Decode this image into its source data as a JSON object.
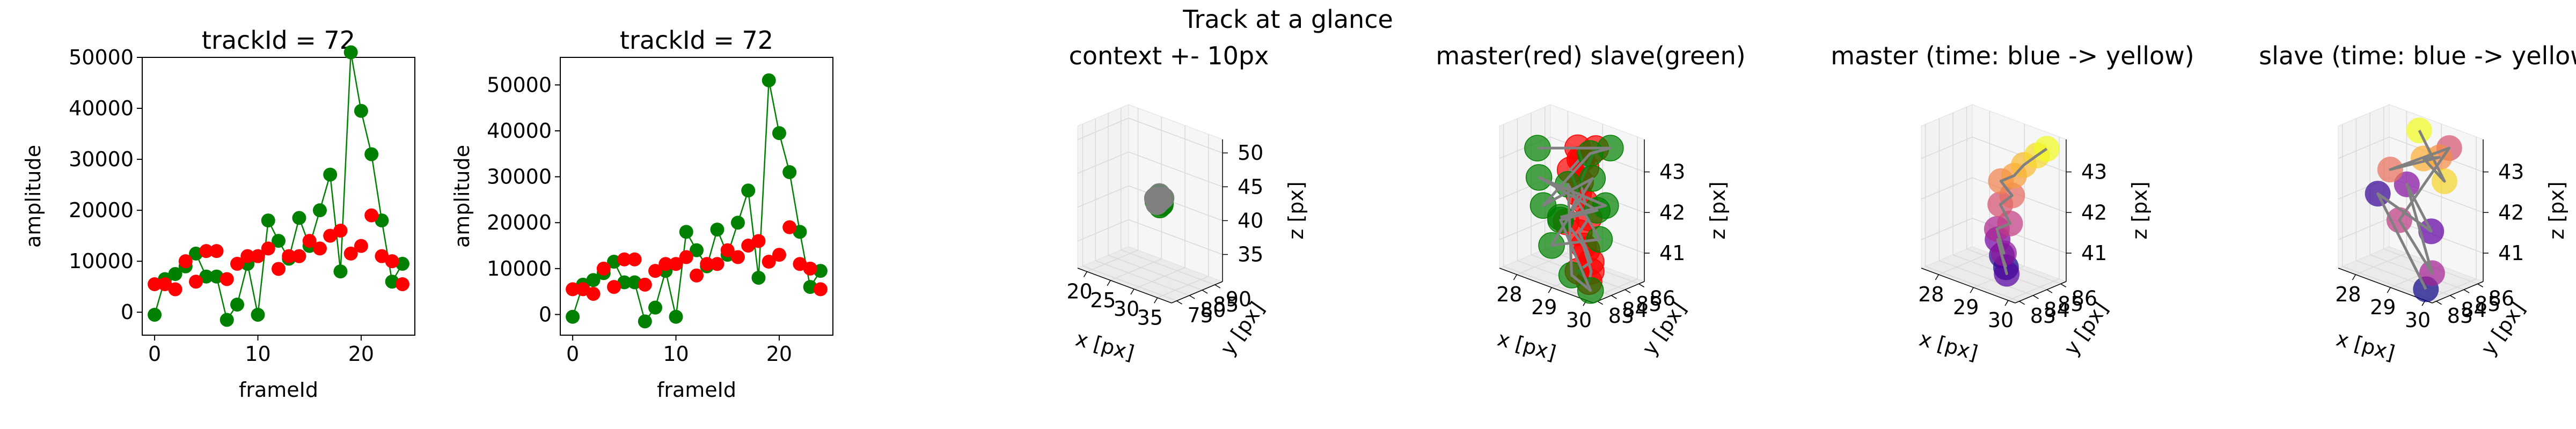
{
  "figure": {
    "suptitle": "Track at a glance"
  },
  "colors": {
    "master": "#ff0000",
    "slave": "#008000",
    "path": "#808080",
    "pane": "#f2f2f2",
    "grid": "#e6e6e6"
  },
  "chart_data": [
    {
      "type": "line",
      "title": "trackId = 72",
      "xlabel": "frameId",
      "ylabel": "amplitude",
      "xlim": [
        -1.2,
        25.2
      ],
      "ylim": [
        -4500,
        50000
      ],
      "xticks": [
        0,
        10,
        20
      ],
      "yticks": [
        0,
        10000,
        20000,
        30000,
        40000,
        50000
      ],
      "x": [
        0,
        1,
        2,
        3,
        4,
        5,
        6,
        7,
        8,
        9,
        10,
        11,
        12,
        13,
        14,
        15,
        16,
        17,
        18,
        19,
        20,
        21,
        22,
        23,
        24
      ],
      "series": [
        {
          "color": "#008000",
          "marker": "circle",
          "line": true,
          "values": [
            -500,
            6500,
            7500,
            9000,
            11500,
            7000,
            7000,
            -1500,
            1500,
            9500,
            -500,
            18000,
            14000,
            10500,
            18500,
            13000,
            20000,
            27000,
            8000,
            51000,
            39500,
            31000,
            18000,
            6000,
            9500
          ]
        },
        {
          "color": "#ff0000",
          "marker": "circle",
          "line": false,
          "values": [
            5500,
            5500,
            4500,
            10000,
            6000,
            12000,
            12000,
            6500,
            9500,
            11000,
            11000,
            12500,
            8500,
            11000,
            11000,
            14000,
            12500,
            15000,
            16000,
            11500,
            13000,
            19000,
            11000,
            10000,
            5500
          ]
        }
      ]
    },
    {
      "type": "line",
      "title": "trackId = 72",
      "xlabel": "frameId",
      "ylabel": "amplitude",
      "xlim": [
        -1.2,
        25.2
      ],
      "ylim": [
        -4500,
        56000
      ],
      "xticks": [
        0,
        10,
        20
      ],
      "yticks": [
        0,
        10000,
        20000,
        30000,
        40000,
        50000
      ],
      "x": [
        0,
        1,
        2,
        3,
        4,
        5,
        6,
        7,
        8,
        9,
        10,
        11,
        12,
        13,
        14,
        15,
        16,
        17,
        18,
        19,
        20,
        21,
        22,
        23,
        24
      ],
      "series": [
        {
          "color": "#008000",
          "marker": "circle",
          "line": true,
          "values": [
            -500,
            6500,
            7500,
            9000,
            11500,
            7000,
            7000,
            -1500,
            1500,
            9500,
            -500,
            18000,
            14000,
            10500,
            18500,
            13000,
            20000,
            27000,
            8000,
            51000,
            39500,
            31000,
            18000,
            6000,
            9500
          ]
        },
        {
          "color": "#ff0000",
          "marker": "circle",
          "line": false,
          "values": [
            5500,
            5500,
            4500,
            10000,
            6000,
            12000,
            12000,
            6500,
            9500,
            11000,
            11000,
            12500,
            8500,
            11000,
            11000,
            14000,
            12500,
            15000,
            16000,
            11500,
            13000,
            19000,
            11000,
            10000,
            5500
          ]
        }
      ]
    },
    {
      "type": "scatter",
      "projection": "3d",
      "title": "context +- 10px",
      "xlabel": "x [px]",
      "ylabel": "y [px]",
      "zlabel": "z [px]",
      "xlim": [
        18,
        38
      ],
      "ylim": [
        73,
        93
      ],
      "zlim": [
        31,
        52
      ],
      "xticks": [
        20,
        25,
        30,
        35
      ],
      "yticks": [
        75,
        80,
        85,
        90
      ],
      "zticks": [
        35,
        40,
        45,
        50
      ],
      "series": [
        {
          "color": "#008000",
          "points": [
            [
              28.4,
              84.3,
              42.2
            ],
            [
              28.8,
              84.6,
              42.6
            ],
            [
              29.2,
              84.9,
              42.0
            ],
            [
              29.5,
              85.1,
              41.4
            ],
            [
              29.1,
              84.8,
              41.0
            ],
            [
              28.6,
              84.5,
              41.4
            ],
            [
              28.5,
              84.3,
              41.8
            ],
            [
              29.6,
              85.2,
              42.4
            ],
            [
              29.8,
              84.6,
              41.8
            ],
            [
              28.3,
              84.7,
              42.0
            ],
            [
              29.0,
              84.0,
              41.6
            ],
            [
              28.7,
              85.3,
              41.2
            ],
            [
              29.4,
              84.2,
              42.5
            ],
            [
              28.9,
              85.0,
              42.8
            ],
            [
              29.3,
              85.4,
              41.5
            ]
          ]
        },
        {
          "color": "#808080",
          "path": true,
          "points": [
            [
              28.4,
              84.3,
              42.2
            ],
            [
              29.2,
              84.9,
              42.0
            ],
            [
              28.6,
              84.5,
              41.4
            ],
            [
              29.6,
              85.2,
              42.4
            ],
            [
              28.3,
              84.7,
              42.0
            ],
            [
              29.0,
              84.0,
              41.6
            ],
            [
              29.4,
              84.2,
              42.5
            ],
            [
              28.9,
              85.0,
              42.8
            ]
          ]
        }
      ]
    },
    {
      "type": "scatter",
      "projection": "3d",
      "title": "master(red) slave(green)",
      "xlabel": "x [px]",
      "ylabel": "y [px]",
      "zlabel": "z [px]",
      "xlim": [
        27.5,
        30.2
      ],
      "ylim": [
        82.7,
        86.4
      ],
      "zlim": [
        40.3,
        43.8
      ],
      "xticks": [
        28,
        29,
        30
      ],
      "yticks": [
        83,
        84,
        85,
        86
      ],
      "zticks": [
        41,
        42,
        43
      ],
      "series": [
        {
          "color": "#ff0000",
          "path": true,
          "points": [
            [
              28.6,
              85.6,
              43.2
            ],
            [
              28.8,
              85.4,
              43.0
            ],
            [
              29.0,
              85.2,
              42.9
            ],
            [
              29.2,
              85.4,
              43.4
            ],
            [
              29.0,
              84.8,
              42.6
            ],
            [
              29.2,
              84.6,
              42.2
            ],
            [
              29.4,
              84.4,
              41.9
            ],
            [
              29.2,
              84.2,
              41.5
            ],
            [
              29.5,
              84.0,
              41.2
            ],
            [
              29.7,
              83.8,
              41.0
            ],
            [
              29.4,
              83.6,
              40.7
            ],
            [
              29.8,
              83.4,
              40.6
            ],
            [
              29.9,
              83.3,
              40.9
            ],
            [
              29.6,
              83.5,
              41.4
            ],
            [
              28.9,
              84.0,
              41.7
            ],
            [
              29.1,
              84.4,
              42.4
            ],
            [
              28.7,
              84.8,
              42.8
            ],
            [
              28.9,
              85.0,
              43.1
            ]
          ]
        },
        {
          "color": "#008000",
          "path": true,
          "points": [
            [
              28.0,
              84.2,
              43.2
            ],
            [
              29.7,
              85.2,
              43.6
            ],
            [
              29.0,
              85.5,
              43.2
            ],
            [
              28.4,
              83.6,
              42.0
            ],
            [
              29.5,
              84.4,
              42.9
            ],
            [
              28.8,
              83.2,
              41.2
            ],
            [
              29.9,
              83.9,
              41.6
            ],
            [
              28.6,
              84.9,
              42.4
            ],
            [
              29.3,
              83.4,
              40.6
            ],
            [
              30.0,
              83.0,
              40.5
            ],
            [
              28.9,
              83.6,
              41.8
            ],
            [
              29.4,
              85.0,
              42.0
            ],
            [
              28.2,
              83.8,
              42.6
            ],
            [
              29.8,
              84.6,
              42.3
            ],
            [
              28.5,
              84.6,
              41.6
            ]
          ]
        }
      ]
    },
    {
      "type": "scatter",
      "projection": "3d",
      "title": "master (time: blue -> yellow)",
      "xlabel": "x [px]",
      "ylabel": "y [px]",
      "zlabel": "z [px]",
      "xlim": [
        27.5,
        30.2
      ],
      "ylim": [
        82.7,
        86.4
      ],
      "zlim": [
        40.3,
        43.8
      ],
      "xticks": [
        28,
        29,
        30
      ],
      "yticks": [
        83,
        84,
        85,
        86
      ],
      "zticks": [
        41,
        42,
        43
      ],
      "colormap": [
        "#0d0887",
        "#6a00a8",
        "#b12a90",
        "#e16462",
        "#fca636",
        "#f0f921"
      ],
      "series": [
        {
          "color": "#808080",
          "path": true,
          "points": [
            [
              29.5,
              83.8,
              40.8
            ],
            [
              29.3,
              84.0,
              41.0
            ],
            [
              29.6,
              83.6,
              40.7
            ],
            [
              29.1,
              84.2,
              41.3
            ],
            [
              29.4,
              83.9,
              41.1
            ],
            [
              29.0,
              84.4,
              41.5
            ],
            [
              29.3,
              84.6,
              41.7
            ],
            [
              28.9,
              84.9,
              42.0
            ],
            [
              29.2,
              85.0,
              42.3
            ],
            [
              28.8,
              85.2,
              42.5
            ],
            [
              29.1,
              85.4,
              42.7
            ],
            [
              29.3,
              85.6,
              43.0
            ],
            [
              29.6,
              85.8,
              43.3
            ],
            [
              29.8,
              86.0,
              43.5
            ]
          ]
        }
      ]
    },
    {
      "type": "scatter",
      "projection": "3d",
      "title": "slave (time: blue -> yellow)",
      "xlabel": "x [px]",
      "ylabel": "y [px]",
      "zlabel": "z [px]",
      "xlim": [
        27.5,
        30.2
      ],
      "ylim": [
        82.7,
        86.4
      ],
      "zlim": [
        40.3,
        43.8
      ],
      "xticks": [
        28,
        29,
        30
      ],
      "yticks": [
        83,
        84,
        85,
        86
      ],
      "zticks": [
        41,
        42,
        43
      ],
      "colormap": [
        "#0d0887",
        "#6a00a8",
        "#b12a90",
        "#e16462",
        "#fca636",
        "#f0f921"
      ],
      "series": [
        {
          "color": "#808080",
          "path": true,
          "points": [
            [
              29.9,
              83.0,
              40.5
            ],
            [
              28.2,
              83.8,
              42.2
            ],
            [
              29.5,
              84.4,
              41.6
            ],
            [
              28.6,
              84.9,
              42.4
            ],
            [
              30.0,
              83.2,
              40.9
            ],
            [
              28.9,
              83.6,
              41.8
            ],
            [
              29.7,
              85.2,
              43.6
            ],
            [
              28.4,
              84.2,
              42.8
            ],
            [
              29.3,
              85.5,
              43.2
            ],
            [
              28.8,
              85.6,
              43.0
            ],
            [
              29.8,
              84.6,
              42.9
            ],
            [
              28.6,
              85.8,
              43.6
            ]
          ]
        }
      ]
    }
  ]
}
